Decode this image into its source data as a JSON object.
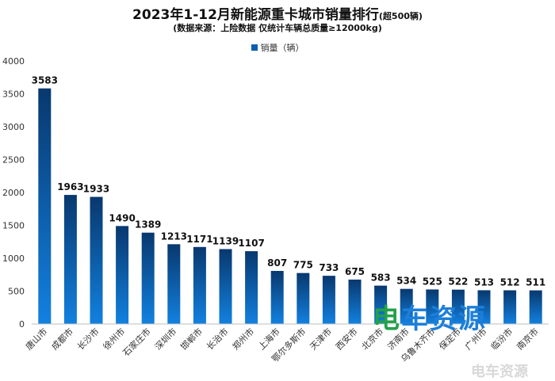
{
  "header": {
    "title_main": "2023年1-12月新能源重卡城市销量排行",
    "title_suffix": "(超500辆)",
    "subtitle": "(数据来源：上险数据 仅统计车辆总质量≥12000kg)"
  },
  "legend": {
    "label": "销量（辆）"
  },
  "watermark": {
    "logo_text_a": "电",
    "logo_text_b": "车资源",
    "small_text": "电车资源"
  },
  "colors": {
    "bar_top": "#08386e",
    "bar_bottom": "#1281e0",
    "legend": "#0a5fae"
  },
  "chart_data": {
    "type": "bar",
    "categories": [
      "唐山市",
      "成都市",
      "长沙市",
      "徐州市",
      "石家庄市",
      "深圳市",
      "邯郸市",
      "长治市",
      "郑州市",
      "上海市",
      "鄂尔多斯市",
      "天津市",
      "西安市",
      "北京市",
      "济南市",
      "乌鲁木齐市",
      "保定市",
      "广州市",
      "临汾市",
      "南京市"
    ],
    "series": [
      {
        "name": "销量（辆）",
        "values": [
          3583,
          1963,
          1933,
          1490,
          1389,
          1213,
          1171,
          1139,
          1107,
          807,
          775,
          733,
          675,
          583,
          534,
          525,
          522,
          513,
          512,
          511
        ]
      }
    ],
    "yticks": [
      0,
      500,
      1000,
      1500,
      2000,
      2500,
      3000,
      3500,
      4000
    ],
    "ylim": [
      0,
      4000
    ],
    "grid": false,
    "legend_position": "top-center",
    "data_labels": true
  }
}
